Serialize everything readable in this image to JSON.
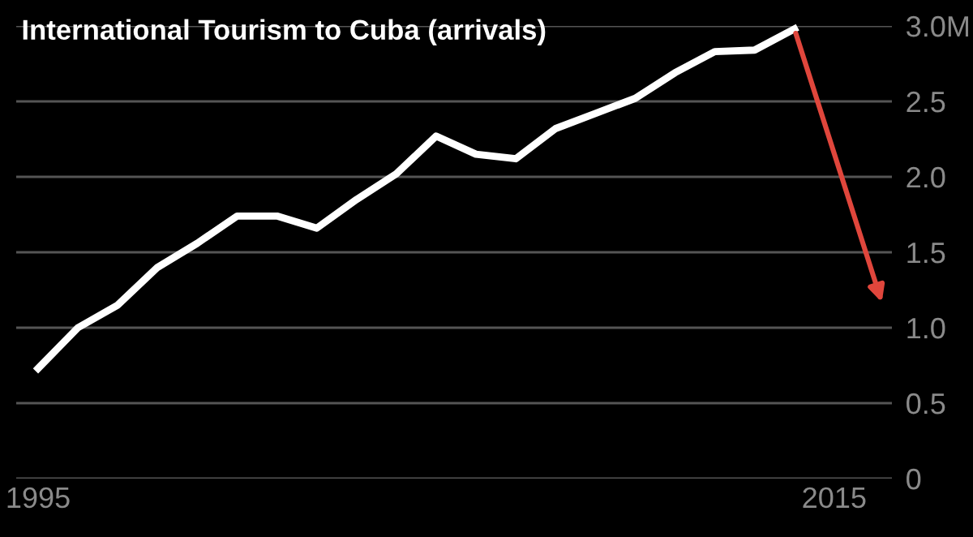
{
  "chart_data": {
    "type": "line",
    "title": "International Tourism to Cuba (arrivals)",
    "x": [
      1995,
      1996,
      1997,
      1998,
      1999,
      2000,
      2001,
      2002,
      2003,
      2004,
      2005,
      2006,
      2007,
      2008,
      2009,
      2010,
      2011,
      2012,
      2013,
      2014
    ],
    "series": [
      {
        "color": "#ffffff",
        "values": [
          0.73,
          1.0,
          1.15,
          1.4,
          1.56,
          1.74,
          1.74,
          1.66,
          1.85,
          2.02,
          2.27,
          2.15,
          2.12,
          2.32,
          2.42,
          2.52,
          2.69,
          2.83,
          2.84,
          2.98
        ]
      }
    ],
    "xlim": [
      1994.45,
      2016.45
    ],
    "xticks": [
      1995,
      2015
    ],
    "ylim": [
      0,
      3.0
    ],
    "yticks": [
      0,
      0.5,
      {
        "value": 1,
        "label": "1.0"
      },
      1.5,
      {
        "value": 2,
        "label": "2.0"
      },
      2.5,
      {
        "value": 3,
        "label": "3.0M"
      }
    ],
    "grid": "y",
    "marker": "none",
    "line_style": "solid"
  }
}
